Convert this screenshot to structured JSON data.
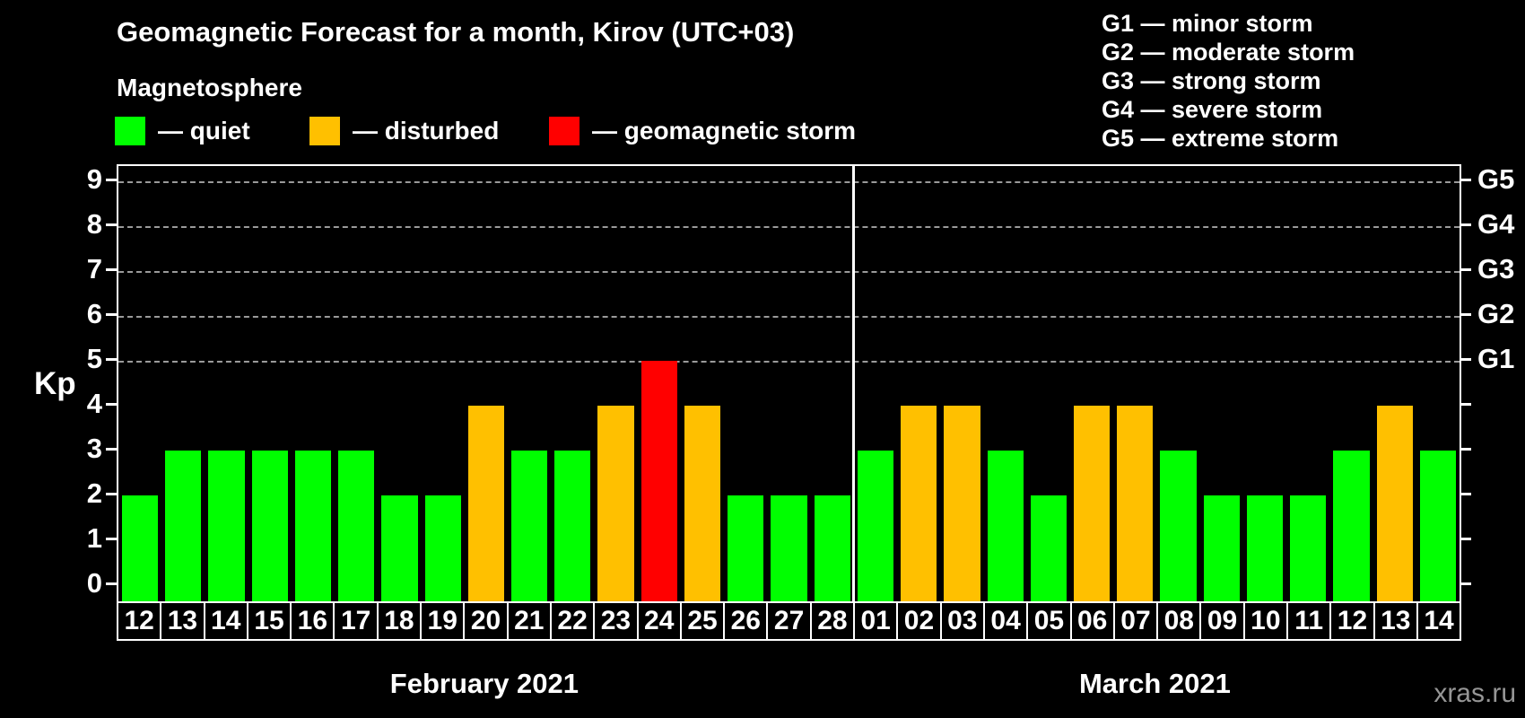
{
  "title": "Geomagnetic Forecast for a month, Kirov (UTC+03)",
  "subtitle": "Magnetosphere",
  "watermark": "xras.ru",
  "colors": {
    "quiet": "#00ff00",
    "disturbed": "#ffc000",
    "storm": "#ff0000",
    "background": "#000000",
    "axis": "#ffffff",
    "gridline": "#9a9a9a",
    "watermark": "#969696"
  },
  "legend": {
    "items": [
      {
        "key": "quiet",
        "label": "— quiet",
        "color": "#00ff00",
        "x": 128
      },
      {
        "key": "disturbed",
        "label": "— disturbed",
        "color": "#ffc000",
        "x": 345
      },
      {
        "key": "storm",
        "label": "— geomagnetic storm",
        "color": "#ff0000",
        "x": 612
      }
    ]
  },
  "g_legend": [
    "G1 — minor storm",
    "G2 — moderate storm",
    "G3 — strong storm",
    "G4 — severe storm",
    "G5 — extreme storm"
  ],
  "chart_data": {
    "type": "bar",
    "title": "Geomagnetic Forecast for a month, Kirov (UTC+03)",
    "ylabel": "Kp",
    "ylim": [
      0,
      9
    ],
    "yticks": [
      0,
      1,
      2,
      3,
      4,
      5,
      6,
      7,
      8,
      9
    ],
    "gridlines_kp": [
      5,
      6,
      7,
      8,
      9
    ],
    "grid": "dashed horizontal at storm levels only",
    "legend_position": "top",
    "right_axis_labels": [
      {
        "kp": 5,
        "label": "G1"
      },
      {
        "kp": 6,
        "label": "G2"
      },
      {
        "kp": 7,
        "label": "G3"
      },
      {
        "kp": 8,
        "label": "G4"
      },
      {
        "kp": 9,
        "label": "G5"
      }
    ],
    "months": [
      {
        "label": "February 2021",
        "days": 17
      },
      {
        "label": "March 2021",
        "days": 14
      }
    ],
    "categories": [
      "12",
      "13",
      "14",
      "15",
      "16",
      "17",
      "18",
      "19",
      "20",
      "21",
      "22",
      "23",
      "24",
      "25",
      "26",
      "27",
      "28",
      "01",
      "02",
      "03",
      "04",
      "05",
      "06",
      "07",
      "08",
      "09",
      "10",
      "11",
      "12",
      "13",
      "14"
    ],
    "values": [
      2,
      3,
      3,
      3,
      3,
      3,
      2,
      2,
      4,
      3,
      3,
      4,
      5,
      4,
      2,
      2,
      2,
      3,
      4,
      4,
      3,
      2,
      4,
      4,
      3,
      2,
      2,
      2,
      3,
      4,
      3
    ],
    "status": [
      "quiet",
      "quiet",
      "quiet",
      "quiet",
      "quiet",
      "quiet",
      "quiet",
      "quiet",
      "disturbed",
      "quiet",
      "quiet",
      "disturbed",
      "storm",
      "disturbed",
      "quiet",
      "quiet",
      "quiet",
      "quiet",
      "disturbed",
      "disturbed",
      "quiet",
      "quiet",
      "disturbed",
      "disturbed",
      "quiet",
      "quiet",
      "quiet",
      "quiet",
      "quiet",
      "disturbed",
      "quiet"
    ]
  }
}
